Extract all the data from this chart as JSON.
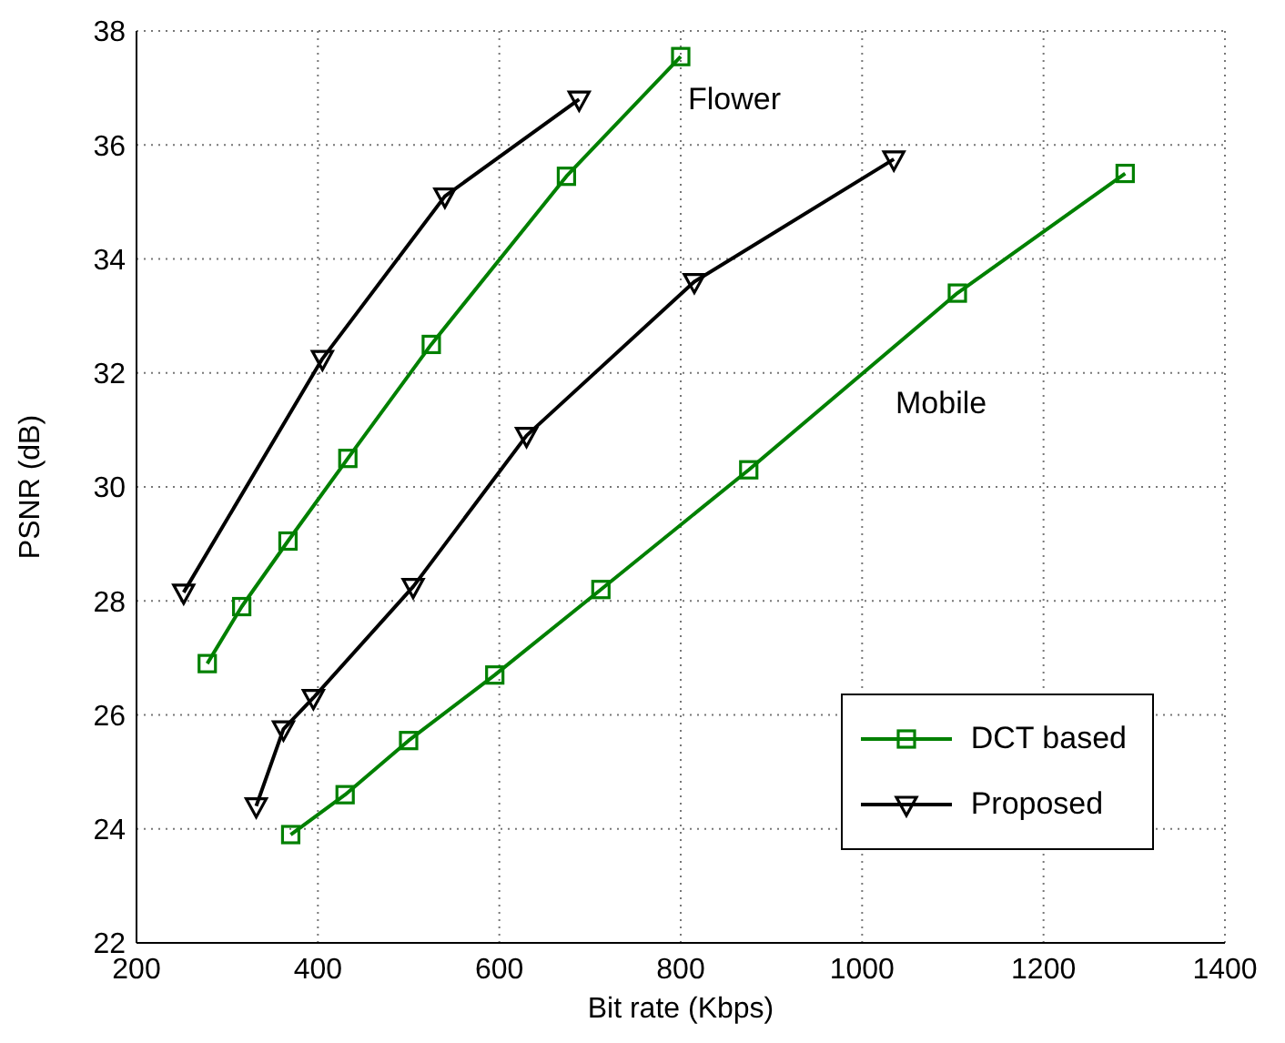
{
  "chart_data": {
    "type": "line",
    "xlabel": "Bit rate (Kbps)",
    "ylabel": "PSNR (dB)",
    "xlim": [
      200,
      1400
    ],
    "xticks": [
      200,
      400,
      600,
      800,
      1000,
      1200,
      1400
    ],
    "ylim": [
      22,
      38
    ],
    "yticks": [
      22,
      24,
      26,
      28,
      30,
      32,
      34,
      36,
      38
    ],
    "grid": true,
    "legend": "bottom right",
    "annotations": [
      "Flower",
      "Mobile"
    ],
    "series": [
      {
        "name": "DCT based",
        "color": "#008000",
        "marker": "square",
        "x": [
          278,
          316,
          367,
          433,
          525,
          674,
          800
        ],
        "values": [
          26.9,
          27.9,
          29.05,
          30.5,
          32.5,
          35.45,
          37.55
        ]
      },
      {
        "name": "Proposed",
        "color": "#000000",
        "marker": "triangle",
        "x": [
          252,
          405,
          540,
          688
        ],
        "values": [
          28.15,
          32.25,
          35.1,
          36.8
        ]
      },
      {
        "color": "#008000",
        "marker": "square",
        "x": [
          370,
          430,
          500,
          595,
          712,
          875,
          1105,
          1290
        ],
        "values": [
          23.9,
          24.6,
          25.55,
          26.7,
          28.2,
          30.3,
          33.4,
          35.5
        ]
      },
      {
        "color": "#000000",
        "marker": "triangle",
        "x": [
          332,
          362,
          395,
          505,
          630,
          815,
          1035
        ],
        "values": [
          24.4,
          25.75,
          26.3,
          28.25,
          30.9,
          33.6,
          35.75
        ]
      }
    ]
  }
}
